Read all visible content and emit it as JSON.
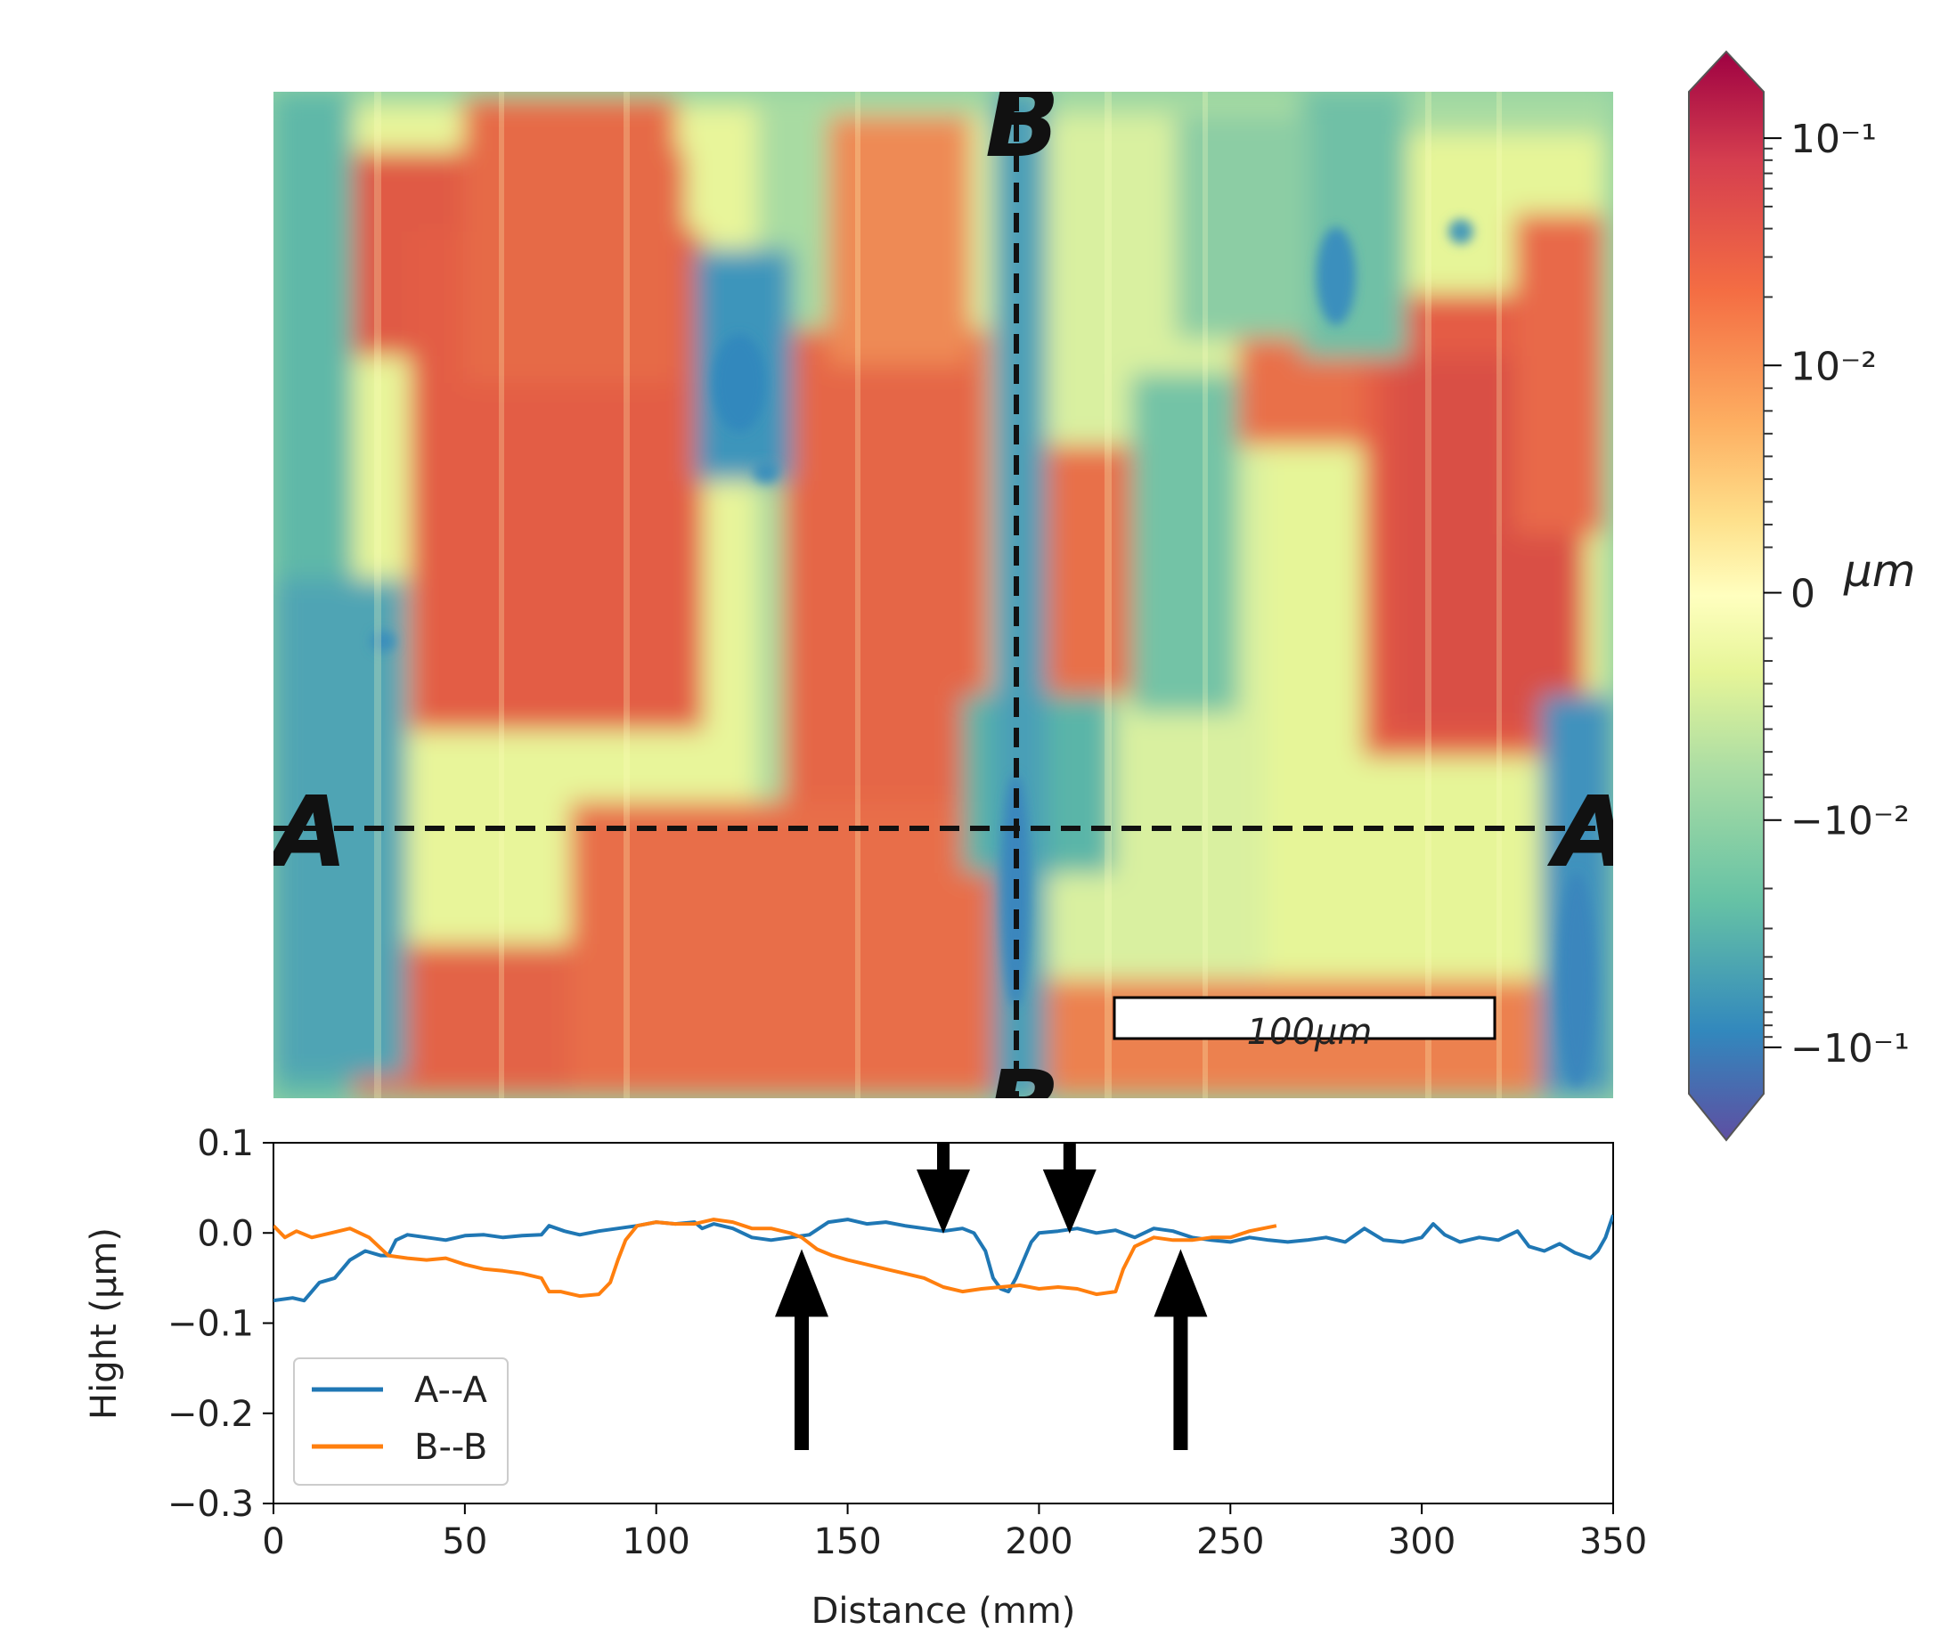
{
  "heightmap": {
    "section_labels": {
      "a_left": "A",
      "a_right": "A",
      "b_top": "B",
      "b_bottom": "B"
    },
    "scale_bar_label": "100μm",
    "colormap": "Spectral_r",
    "colorbar": {
      "ticks": [
        {
          "value": 0.1,
          "label": "10⁻¹"
        },
        {
          "value": 0.01,
          "label": "10⁻²"
        },
        {
          "value": 0,
          "label": "0"
        },
        {
          "value": -0.01,
          "label": "−10⁻²"
        },
        {
          "value": -0.1,
          "label": "−10⁻¹"
        }
      ],
      "unit_label": "μm",
      "colors": {
        "top": "#9e0142",
        "upper": "#d53e4f",
        "mid_upper": "#f46d43",
        "orange": "#fdae61",
        "yellow": "#fee08b",
        "center": "#ffffbf",
        "light_green": "#e6f598",
        "green": "#abdda4",
        "teal": "#66c2a5",
        "blue": "#3288bd",
        "bottom": "#5e4fa2"
      }
    }
  },
  "chart_data": {
    "type": "line",
    "title": "",
    "xlabel": "Distance (mm)",
    "ylabel": "Hight (μm)",
    "xlim": [
      0,
      350
    ],
    "ylim": [
      -0.3,
      0.1
    ],
    "x_ticks": [
      0,
      50,
      100,
      150,
      200,
      250,
      300,
      350
    ],
    "y_ticks": [
      {
        "value": 0.1,
        "label": "0.1"
      },
      {
        "value": 0.0,
        "label": "0.0"
      },
      {
        "value": -0.1,
        "label": "−0.1"
      },
      {
        "value": -0.2,
        "label": "−0.2"
      },
      {
        "value": -0.3,
        "label": "−0.3"
      }
    ],
    "series": [
      {
        "name": "A--A",
        "color": "#1f77b4",
        "points": [
          [
            0,
            -0.075
          ],
          [
            5,
            -0.072
          ],
          [
            8,
            -0.075
          ],
          [
            12,
            -0.055
          ],
          [
            16,
            -0.05
          ],
          [
            20,
            -0.03
          ],
          [
            24,
            -0.02
          ],
          [
            28,
            -0.025
          ],
          [
            30,
            -0.025
          ],
          [
            32,
            -0.008
          ],
          [
            35,
            -0.002
          ],
          [
            40,
            -0.005
          ],
          [
            45,
            -0.008
          ],
          [
            50,
            -0.003
          ],
          [
            55,
            -0.002
          ],
          [
            60,
            -0.005
          ],
          [
            65,
            -0.003
          ],
          [
            70,
            -0.002
          ],
          [
            72,
            0.008
          ],
          [
            76,
            0.002
          ],
          [
            80,
            -0.002
          ],
          [
            85,
            0.002
          ],
          [
            90,
            0.005
          ],
          [
            95,
            0.008
          ],
          [
            100,
            0.012
          ],
          [
            105,
            0.01
          ],
          [
            110,
            0.012
          ],
          [
            112,
            0.005
          ],
          [
            115,
            0.01
          ],
          [
            120,
            0.005
          ],
          [
            125,
            -0.005
          ],
          [
            130,
            -0.008
          ],
          [
            135,
            -0.005
          ],
          [
            140,
            -0.002
          ],
          [
            145,
            0.012
          ],
          [
            150,
            0.015
          ],
          [
            155,
            0.01
          ],
          [
            160,
            0.012
          ],
          [
            165,
            0.008
          ],
          [
            170,
            0.005
          ],
          [
            175,
            0.002
          ],
          [
            180,
            0.005
          ],
          [
            183,
            0.0
          ],
          [
            186,
            -0.02
          ],
          [
            188,
            -0.05
          ],
          [
            190,
            -0.062
          ],
          [
            192,
            -0.065
          ],
          [
            194,
            -0.05
          ],
          [
            196,
            -0.03
          ],
          [
            198,
            -0.01
          ],
          [
            200,
            0.0
          ],
          [
            205,
            0.002
          ],
          [
            210,
            0.005
          ],
          [
            215,
            0.0
          ],
          [
            220,
            0.003
          ],
          [
            225,
            -0.005
          ],
          [
            230,
            0.005
          ],
          [
            235,
            0.002
          ],
          [
            240,
            -0.005
          ],
          [
            245,
            -0.008
          ],
          [
            250,
            -0.01
          ],
          [
            255,
            -0.005
          ],
          [
            260,
            -0.008
          ],
          [
            265,
            -0.01
          ],
          [
            270,
            -0.008
          ],
          [
            275,
            -0.005
          ],
          [
            280,
            -0.01
          ],
          [
            285,
            0.005
          ],
          [
            290,
            -0.008
          ],
          [
            295,
            -0.01
          ],
          [
            300,
            -0.005
          ],
          [
            303,
            0.01
          ],
          [
            306,
            -0.002
          ],
          [
            310,
            -0.01
          ],
          [
            315,
            -0.005
          ],
          [
            320,
            -0.008
          ],
          [
            325,
            0.002
          ],
          [
            328,
            -0.015
          ],
          [
            332,
            -0.02
          ],
          [
            336,
            -0.012
          ],
          [
            340,
            -0.022
          ],
          [
            344,
            -0.028
          ],
          [
            346,
            -0.02
          ],
          [
            348,
            -0.005
          ],
          [
            350,
            0.02
          ]
        ]
      },
      {
        "name": "B--B",
        "color": "#ff7f0e",
        "points": [
          [
            0,
            0.008
          ],
          [
            3,
            -0.005
          ],
          [
            6,
            0.002
          ],
          [
            10,
            -0.005
          ],
          [
            15,
            0.0
          ],
          [
            20,
            0.005
          ],
          [
            25,
            -0.005
          ],
          [
            30,
            -0.025
          ],
          [
            35,
            -0.028
          ],
          [
            40,
            -0.03
          ],
          [
            45,
            -0.028
          ],
          [
            50,
            -0.035
          ],
          [
            55,
            -0.04
          ],
          [
            60,
            -0.042
          ],
          [
            65,
            -0.045
          ],
          [
            70,
            -0.05
          ],
          [
            72,
            -0.065
          ],
          [
            75,
            -0.065
          ],
          [
            80,
            -0.07
          ],
          [
            85,
            -0.068
          ],
          [
            88,
            -0.055
          ],
          [
            90,
            -0.03
          ],
          [
            92,
            -0.008
          ],
          [
            95,
            0.008
          ],
          [
            100,
            0.012
          ],
          [
            105,
            0.01
          ],
          [
            110,
            0.01
          ],
          [
            115,
            0.015
          ],
          [
            120,
            0.012
          ],
          [
            125,
            0.005
          ],
          [
            130,
            0.005
          ],
          [
            135,
            0.0
          ],
          [
            138,
            -0.005
          ],
          [
            142,
            -0.018
          ],
          [
            146,
            -0.025
          ],
          [
            150,
            -0.03
          ],
          [
            155,
            -0.035
          ],
          [
            160,
            -0.04
          ],
          [
            165,
            -0.045
          ],
          [
            170,
            -0.05
          ],
          [
            175,
            -0.06
          ],
          [
            180,
            -0.065
          ],
          [
            185,
            -0.062
          ],
          [
            190,
            -0.06
          ],
          [
            195,
            -0.058
          ],
          [
            200,
            -0.062
          ],
          [
            205,
            -0.06
          ],
          [
            210,
            -0.062
          ],
          [
            215,
            -0.068
          ],
          [
            220,
            -0.065
          ],
          [
            222,
            -0.04
          ],
          [
            225,
            -0.015
          ],
          [
            230,
            -0.005
          ],
          [
            235,
            -0.008
          ],
          [
            240,
            -0.008
          ],
          [
            245,
            -0.005
          ],
          [
            250,
            -0.005
          ],
          [
            255,
            0.002
          ],
          [
            262,
            0.008
          ]
        ]
      }
    ],
    "legend": {
      "position": "lower left",
      "entries": [
        "A--A",
        "B--B"
      ]
    },
    "annotations": {
      "down_arrows_x": [
        175,
        208
      ],
      "up_arrows_x": [
        138,
        237
      ]
    }
  }
}
